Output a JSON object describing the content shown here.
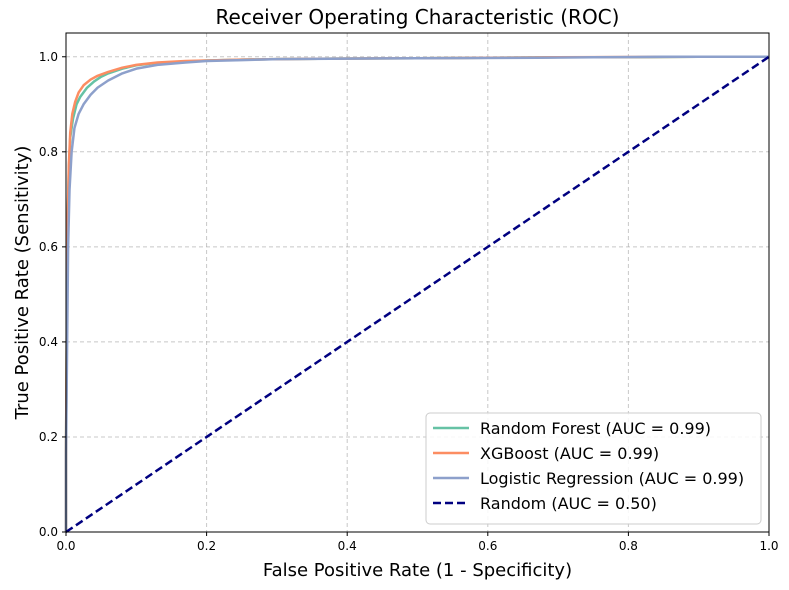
{
  "chart_data": {
    "type": "line",
    "title": "Receiver Operating Characteristic (ROC)",
    "xlabel": "False Positive Rate (1 - Specificity)",
    "ylabel": "True Positive Rate (Sensitivity)",
    "xlim": [
      0,
      1
    ],
    "ylim": [
      0,
      1.05
    ],
    "xticks": [
      {
        "value": 0.0,
        "label": "0.0"
      },
      {
        "value": 0.2,
        "label": "0.2"
      },
      {
        "value": 0.4,
        "label": "0.4"
      },
      {
        "value": 0.6,
        "label": "0.6"
      },
      {
        "value": 0.8,
        "label": "0.8"
      },
      {
        "value": 1.0,
        "label": "1.0"
      }
    ],
    "yticks": [
      {
        "value": 0.0,
        "label": "0.0"
      },
      {
        "value": 0.2,
        "label": "0.2"
      },
      {
        "value": 0.4,
        "label": "0.4"
      },
      {
        "value": 0.6,
        "label": "0.6"
      },
      {
        "value": 0.8,
        "label": "0.8"
      },
      {
        "value": 1.0,
        "label": "1.0"
      }
    ],
    "grid": true,
    "legend_position": "lower-right",
    "series": [
      {
        "name": "Random Forest (AUC = 0.99)",
        "color": "#66c2a5",
        "dash": "solid",
        "points": [
          [
            0,
            0
          ],
          [
            0,
            0.17
          ],
          [
            0.002,
            0.62
          ],
          [
            0.004,
            0.76
          ],
          [
            0.006,
            0.83
          ],
          [
            0.01,
            0.87
          ],
          [
            0.015,
            0.9
          ],
          [
            0.02,
            0.915
          ],
          [
            0.03,
            0.935
          ],
          [
            0.04,
            0.948
          ],
          [
            0.05,
            0.958
          ],
          [
            0.06,
            0.965
          ],
          [
            0.08,
            0.975
          ],
          [
            0.1,
            0.982
          ],
          [
            0.13,
            0.987
          ],
          [
            0.17,
            0.99
          ],
          [
            0.2,
            0.992
          ],
          [
            0.25,
            0.994
          ],
          [
            0.3,
            0.995
          ],
          [
            0.38,
            0.996
          ],
          [
            0.5,
            0.997
          ],
          [
            0.6,
            0.998
          ],
          [
            0.7,
            0.999
          ],
          [
            0.8,
            0.999
          ],
          [
            0.9,
            1.0
          ],
          [
            1,
            1.0
          ]
        ]
      },
      {
        "name": "XGBoost (AUC = 0.99)",
        "color": "#fc8d62",
        "dash": "solid",
        "points": [
          [
            0,
            0
          ],
          [
            0,
            0.17
          ],
          [
            0.002,
            0.63
          ],
          [
            0.004,
            0.77
          ],
          [
            0.006,
            0.84
          ],
          [
            0.009,
            0.88
          ],
          [
            0.013,
            0.905
          ],
          [
            0.018,
            0.925
          ],
          [
            0.025,
            0.94
          ],
          [
            0.035,
            0.952
          ],
          [
            0.045,
            0.96
          ],
          [
            0.06,
            0.968
          ],
          [
            0.08,
            0.977
          ],
          [
            0.1,
            0.983
          ],
          [
            0.13,
            0.988
          ],
          [
            0.17,
            0.991
          ],
          [
            0.2,
            0.992
          ],
          [
            0.25,
            0.994
          ],
          [
            0.3,
            0.995
          ],
          [
            0.38,
            0.996
          ],
          [
            0.5,
            0.997
          ],
          [
            0.6,
            0.998
          ],
          [
            0.7,
            0.999
          ],
          [
            0.9,
            1.0
          ],
          [
            1,
            1.0
          ]
        ]
      },
      {
        "name": "Logistic Regression (AUC = 0.99)",
        "color": "#8da0cb",
        "dash": "solid",
        "points": [
          [
            0,
            0
          ],
          [
            0,
            0.16
          ],
          [
            0.003,
            0.6
          ],
          [
            0.005,
            0.72
          ],
          [
            0.008,
            0.8
          ],
          [
            0.012,
            0.85
          ],
          [
            0.018,
            0.88
          ],
          [
            0.025,
            0.9
          ],
          [
            0.035,
            0.92
          ],
          [
            0.045,
            0.935
          ],
          [
            0.06,
            0.95
          ],
          [
            0.08,
            0.965
          ],
          [
            0.1,
            0.975
          ],
          [
            0.13,
            0.983
          ],
          [
            0.17,
            0.988
          ],
          [
            0.2,
            0.991
          ],
          [
            0.25,
            0.993
          ],
          [
            0.3,
            0.995
          ],
          [
            0.4,
            0.996
          ],
          [
            0.5,
            0.997
          ],
          [
            0.67,
            0.998
          ],
          [
            0.75,
            0.999
          ],
          [
            0.85,
            1.0
          ],
          [
            1,
            1.0
          ]
        ]
      },
      {
        "name": "Random (AUC = 0.50)",
        "color": "#000080",
        "dash": "dashed",
        "points": [
          [
            0,
            0
          ],
          [
            1,
            1
          ]
        ]
      }
    ]
  }
}
